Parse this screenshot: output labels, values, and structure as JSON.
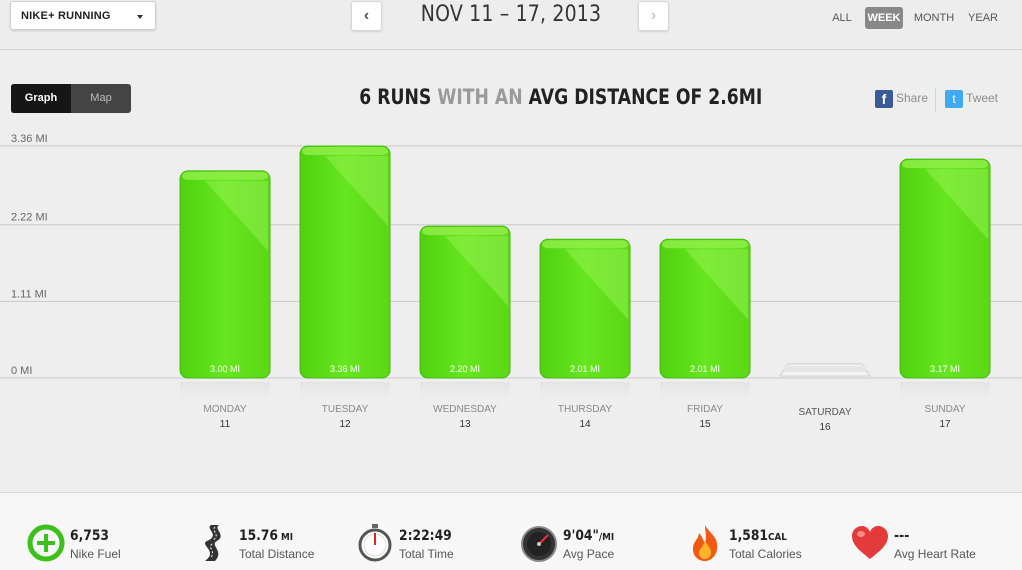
{
  "app_select": {
    "label": "NIKE+ RUNNING"
  },
  "week_nav": {
    "title": "NOV 11 – 17, 2013",
    "prev": "‹",
    "next": "›"
  },
  "periods": [
    "ALL",
    "WEEK",
    "MONTH",
    "YEAR"
  ],
  "selected_period": "WEEK",
  "view_toggle": {
    "graph": "Graph",
    "map": "Map",
    "selected": "Graph"
  },
  "summary": {
    "part1": "6 RUNS ",
    "part2": "WITH AN ",
    "part3": "AVG DISTANCE OF 2.6MI"
  },
  "social": {
    "share": "Share",
    "tweet": "Tweet"
  },
  "colors": {
    "bar": "#5ee21c",
    "bar_light": "#8ef23e",
    "empty": "#e4e4e4",
    "accent": "#5ac818"
  },
  "chart_data": {
    "type": "bar",
    "title": "",
    "ylabel": "",
    "xlabel": "",
    "ylim": [
      0,
      3.36
    ],
    "yticks": [
      "0 MI",
      "1.11 MI",
      "2.22 MI",
      "3.36 MI"
    ],
    "ytick_values": [
      0,
      1.11,
      2.22,
      3.36
    ],
    "grid": true,
    "categories": [
      "MONDAY",
      "TUESDAY",
      "WEDNESDAY",
      "THURSDAY",
      "FRIDAY",
      "SATURDAY",
      "SUNDAY"
    ],
    "dates": [
      "11",
      "12",
      "13",
      "14",
      "15",
      "16",
      "17"
    ],
    "values": [
      3.0,
      3.36,
      2.2,
      2.01,
      2.01,
      0,
      3.17
    ],
    "labels": [
      "3.00 MI",
      "3.36 MI",
      "2.20 MI",
      "2.01 MI",
      "2.01 MI",
      "",
      "3.17 MI"
    ]
  },
  "stats": [
    {
      "icon": "nike-fuel-icon",
      "value": "6,753",
      "unit": "",
      "label": "Nike Fuel"
    },
    {
      "icon": "road-icon",
      "value": "15.76",
      "unit": " MI",
      "label": "Total Distance"
    },
    {
      "icon": "stopwatch-icon",
      "value": "2:22:49",
      "unit": "",
      "label": "Total Time"
    },
    {
      "icon": "speedometer-icon",
      "value": "9'04\"",
      "unit": "/MI",
      "label": "Avg Pace"
    },
    {
      "icon": "flame-icon",
      "value": "1,581",
      "unit": "CAL",
      "label": "Total Calories"
    },
    {
      "icon": "heart-icon",
      "value": "---",
      "unit": "",
      "label": "Avg Heart Rate"
    }
  ]
}
